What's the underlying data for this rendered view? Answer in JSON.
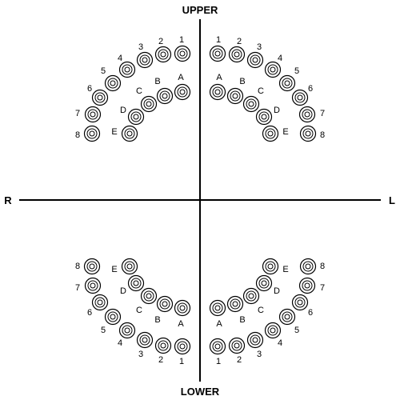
{
  "directions": {
    "upper": "UPPER",
    "lower": "LOWER",
    "right": "R",
    "left": "L"
  },
  "quadrants": {
    "upper_right": {
      "permanent": [
        "1",
        "2",
        "3",
        "4",
        "5",
        "6",
        "7",
        "8"
      ],
      "primary": [
        "A",
        "B",
        "C",
        "D",
        "E"
      ]
    },
    "upper_left": {
      "permanent": [
        "1",
        "2",
        "3",
        "4",
        "5",
        "6",
        "7",
        "8"
      ],
      "primary": [
        "A",
        "B",
        "C",
        "D",
        "E"
      ]
    },
    "lower_right": {
      "permanent": [
        "1",
        "2",
        "3",
        "4",
        "5",
        "6",
        "7",
        "8"
      ],
      "primary": [
        "A",
        "B",
        "C",
        "D",
        "E"
      ]
    },
    "lower_left": {
      "permanent": [
        "1",
        "2",
        "3",
        "4",
        "5",
        "6",
        "7",
        "8"
      ],
      "primary": [
        "A",
        "B",
        "C",
        "D",
        "E"
      ]
    }
  },
  "colors": {
    "stroke": "#000000",
    "background": "#ffffff"
  }
}
